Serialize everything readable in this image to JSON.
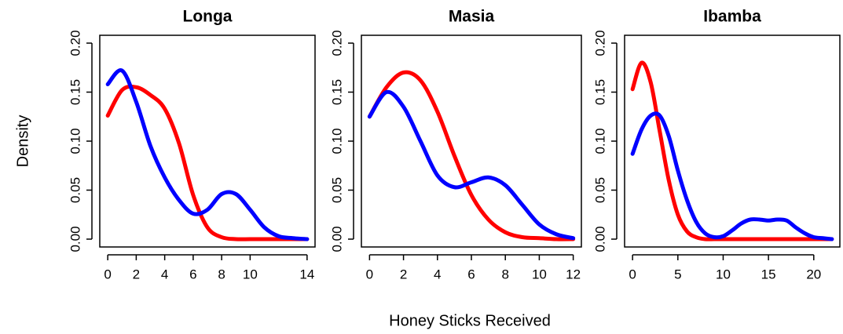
{
  "ylabel": "Density",
  "xlabel": "Honey Sticks Received",
  "chart_data": [
    {
      "type": "line",
      "title": "Longa",
      "x": [
        0,
        1,
        2,
        3,
        4,
        5,
        6,
        7,
        8,
        9,
        10,
        11,
        12,
        13,
        14
      ],
      "series": [
        {
          "color": "#ff0000",
          "values": [
            0.126,
            0.152,
            0.155,
            0.147,
            0.133,
            0.098,
            0.045,
            0.012,
            0.002,
            0,
            0,
            0,
            0,
            0,
            0
          ]
        },
        {
          "color": "#0000ff",
          "values": [
            0.158,
            0.172,
            0.14,
            0.095,
            0.063,
            0.04,
            0.026,
            0.03,
            0.046,
            0.046,
            0.03,
            0.012,
            0.003,
            0.001,
            0
          ]
        }
      ],
      "xlim": [
        -0.56,
        14.56
      ],
      "xticks": [
        0,
        2,
        4,
        6,
        8,
        10,
        14
      ],
      "ylim": [
        -0.008,
        0.208
      ],
      "yticks": [
        {
          "value": 0,
          "label": "0.00"
        },
        {
          "value": 0.05,
          "label": "0.05"
        },
        {
          "value": 0.1,
          "label": "0.10"
        },
        {
          "value": 0.15,
          "label": "0.15"
        },
        {
          "value": 0.2,
          "label": "0.20"
        }
      ]
    },
    {
      "type": "line",
      "title": "Masia",
      "x": [
        0,
        1,
        2,
        3,
        4,
        5,
        6,
        7,
        8,
        9,
        10,
        11,
        12
      ],
      "series": [
        {
          "color": "#ff0000",
          "values": [
            0.125,
            0.155,
            0.17,
            0.162,
            0.13,
            0.085,
            0.045,
            0.02,
            0.007,
            0.002,
            0.001,
            0,
            0
          ]
        },
        {
          "color": "#0000ff",
          "values": [
            0.125,
            0.15,
            0.135,
            0.1,
            0.065,
            0.053,
            0.058,
            0.063,
            0.055,
            0.035,
            0.015,
            0.005,
            0.001
          ]
        }
      ],
      "xlim": [
        -0.48,
        12.48
      ],
      "xticks": [
        0,
        2,
        4,
        6,
        8,
        10,
        12
      ],
      "ylim": [
        -0.008,
        0.208
      ],
      "yticks": [
        {
          "value": 0,
          "label": "0.00"
        },
        {
          "value": 0.05,
          "label": "0.05"
        },
        {
          "value": 0.1,
          "label": "0.10"
        },
        {
          "value": 0.15,
          "label": "0.15"
        },
        {
          "value": 0.2,
          "label": "0.20"
        }
      ]
    },
    {
      "type": "line",
      "title": "Ibamba",
      "x": [
        0,
        1,
        2,
        3,
        4,
        5,
        6,
        7,
        8,
        9,
        10,
        11,
        12,
        13,
        14,
        15,
        16,
        17,
        18,
        19,
        20,
        21,
        22
      ],
      "series": [
        {
          "color": "#ff0000",
          "values": [
            0.153,
            0.18,
            0.16,
            0.11,
            0.06,
            0.025,
            0.008,
            0.002,
            0,
            0,
            0,
            0,
            0,
            0,
            0,
            0,
            0,
            0,
            0,
            0,
            0,
            0,
            0
          ]
        },
        {
          "color": "#0000ff",
          "values": [
            0.087,
            0.112,
            0.126,
            0.126,
            0.105,
            0.07,
            0.04,
            0.018,
            0.006,
            0.002,
            0.003,
            0.009,
            0.016,
            0.02,
            0.02,
            0.019,
            0.02,
            0.019,
            0.012,
            0.006,
            0.002,
            0.001,
            0
          ]
        }
      ],
      "xlim": [
        -0.88,
        22.88
      ],
      "xticks": [
        0,
        5,
        10,
        15,
        20
      ],
      "ylim": [
        -0.008,
        0.208
      ],
      "yticks": [
        {
          "value": 0,
          "label": "0.00"
        },
        {
          "value": 0.05,
          "label": "0.05"
        },
        {
          "value": 0.1,
          "label": "0.10"
        },
        {
          "value": 0.15,
          "label": "0.15"
        },
        {
          "value": 0.2,
          "label": "0.20"
        }
      ]
    }
  ]
}
